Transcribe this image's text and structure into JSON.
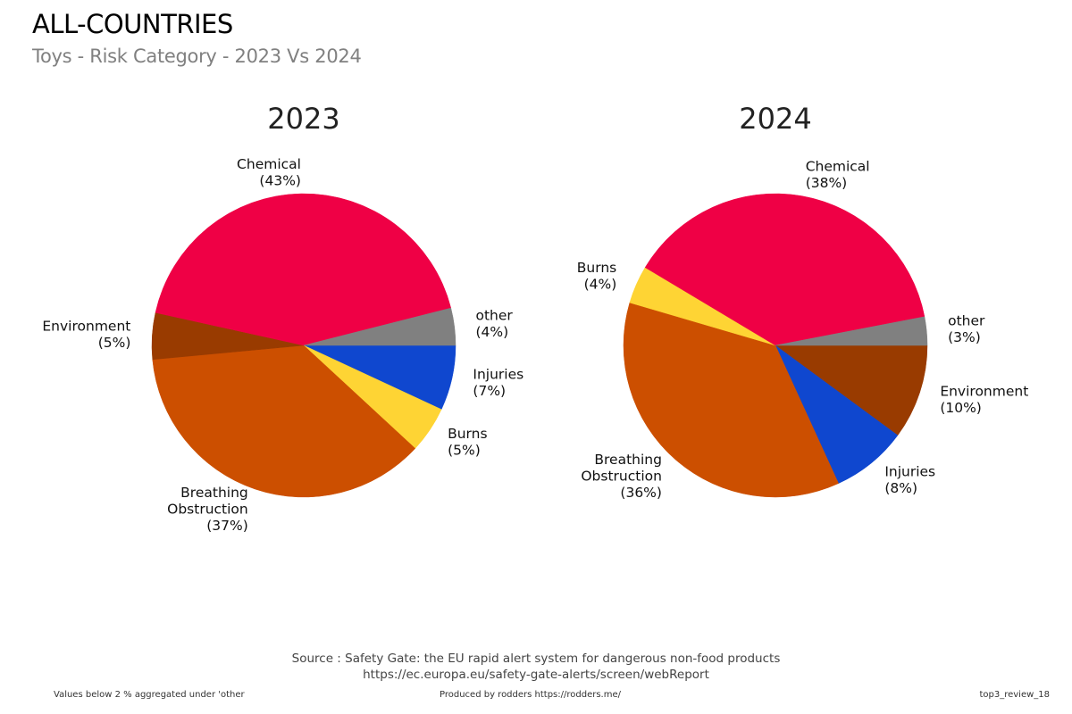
{
  "header": {
    "title": "ALL-COUNTRIES",
    "subtitle": "Toys - Risk Category - 2023 Vs 2024"
  },
  "chart_data": [
    {
      "type": "pie",
      "title": "2023",
      "direction": "clockwise",
      "start": "3 o'clock",
      "slices": [
        {
          "label": "Injuries",
          "pct_label": "(7%)",
          "value": 7,
          "color": "#0f47cf"
        },
        {
          "label": "Burns",
          "pct_label": "(5%)",
          "value": 5,
          "color": "#fed434"
        },
        {
          "label": "Breathing Obstruction",
          "pct_label": "(37%)",
          "value": 37,
          "color": "#cc4f00"
        },
        {
          "label": "Environment",
          "pct_label": "(5%)",
          "value": 5,
          "color": "#993b00"
        },
        {
          "label": "Chemical",
          "pct_label": "(43%)",
          "value": 43,
          "color": "#ef0045"
        },
        {
          "label": "other",
          "pct_label": "(4%)",
          "value": 4,
          "color": "#808080"
        }
      ]
    },
    {
      "type": "pie",
      "title": "2024",
      "direction": "clockwise",
      "start": "3 o'clock",
      "slices": [
        {
          "label": "Environment",
          "pct_label": "(10%)",
          "value": 10,
          "color": "#993b00"
        },
        {
          "label": "Injuries",
          "pct_label": "(8%)",
          "value": 8,
          "color": "#0f47cf"
        },
        {
          "label": "Breathing Obstruction",
          "pct_label": "(36%)",
          "value": 36,
          "color": "#cc4f00"
        },
        {
          "label": "Burns",
          "pct_label": "(4%)",
          "value": 4,
          "color": "#fed434"
        },
        {
          "label": "Chemical",
          "pct_label": "(38%)",
          "value": 38,
          "color": "#ef0045"
        },
        {
          "label": "other",
          "pct_label": "(3%)",
          "value": 3,
          "color": "#808080"
        }
      ]
    }
  ],
  "footer": {
    "source_line1": "Source : Safety Gate: the EU rapid alert system for dangerous non-food products",
    "source_line2": "https://ec.europa.eu/safety-gate-alerts/screen/webReport",
    "note": "Values below 2 % aggregated under 'other",
    "produced_by": "Produced by rodders https://rodders.me/",
    "id": "top3_review_18"
  }
}
